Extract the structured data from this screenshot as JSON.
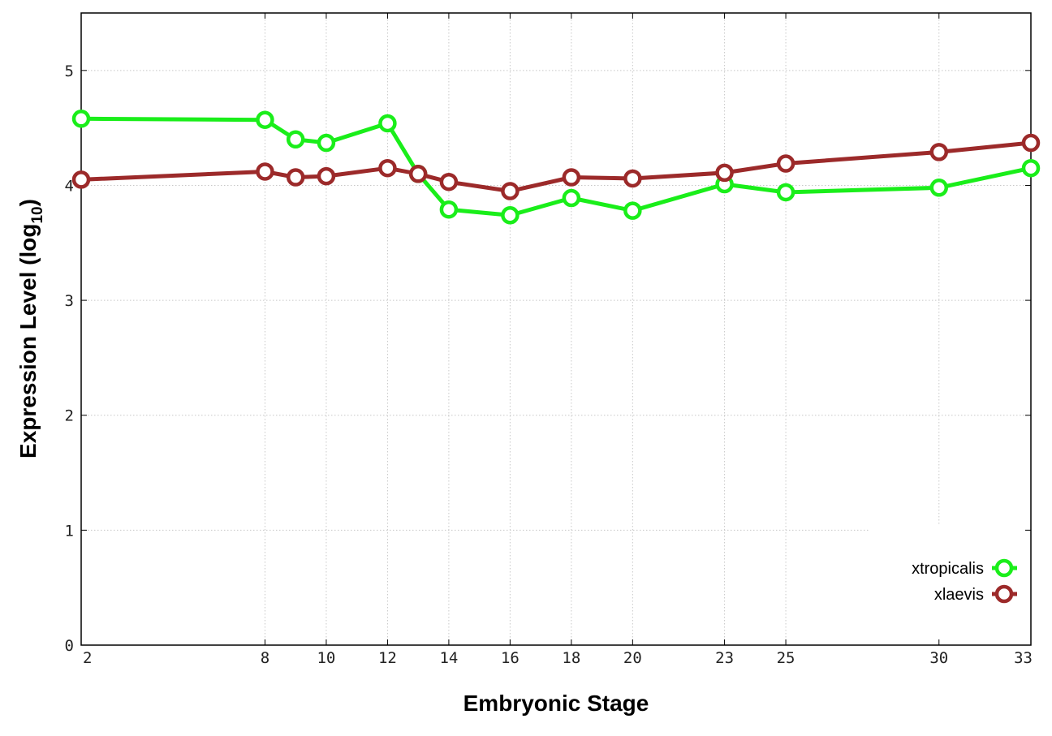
{
  "chart_data": {
    "type": "line",
    "title": "",
    "xlabel": "Embryonic Stage",
    "ylabel_main": "Expression Level (log",
    "ylabel_sub": "10",
    "ylabel_close": ")",
    "x_ticks": [
      {
        "value": 2,
        "label": "2"
      },
      {
        "value": 8,
        "label": "8"
      },
      {
        "value": 10,
        "label": "10"
      },
      {
        "value": 12,
        "label": "12"
      },
      {
        "value": 14,
        "label": "14"
      },
      {
        "value": 16,
        "label": "16"
      },
      {
        "value": 18,
        "label": "18"
      },
      {
        "value": 20,
        "label": "20"
      },
      {
        "value": 23,
        "label": "23"
      },
      {
        "value": 25,
        "label": "25"
      },
      {
        "value": 30,
        "label": "30"
      },
      {
        "value": 33,
        "label": "33"
      }
    ],
    "y_ticks": [
      {
        "value": 0,
        "label": "0"
      },
      {
        "value": 1,
        "label": "1"
      },
      {
        "value": 2,
        "label": "2"
      },
      {
        "value": 3,
        "label": "3"
      },
      {
        "value": 4,
        "label": "4"
      },
      {
        "value": 5,
        "label": "5"
      }
    ],
    "xlim": [
      2,
      33
    ],
    "ylim": [
      0,
      5.5
    ],
    "grid": true,
    "legend_position": "bottom-right",
    "series": [
      {
        "name": "xtropicalis",
        "color": "#1aee1a",
        "x": [
          2,
          8,
          9,
          10,
          12,
          13,
          14,
          16,
          18,
          20,
          23,
          25,
          30,
          33
        ],
        "y": [
          4.58,
          4.57,
          4.4,
          4.37,
          4.54,
          4.1,
          3.79,
          3.74,
          3.89,
          3.78,
          4.01,
          3.94,
          3.98,
          4.15
        ]
      },
      {
        "name": "xlaevis",
        "color": "#9c2a2a",
        "x": [
          2,
          8,
          9,
          10,
          12,
          13,
          14,
          16,
          18,
          20,
          23,
          25,
          30,
          33
        ],
        "y": [
          4.05,
          4.12,
          4.07,
          4.08,
          4.15,
          4.1,
          4.03,
          3.95,
          4.07,
          4.06,
          4.11,
          4.19,
          4.29,
          4.37
        ]
      }
    ]
  }
}
